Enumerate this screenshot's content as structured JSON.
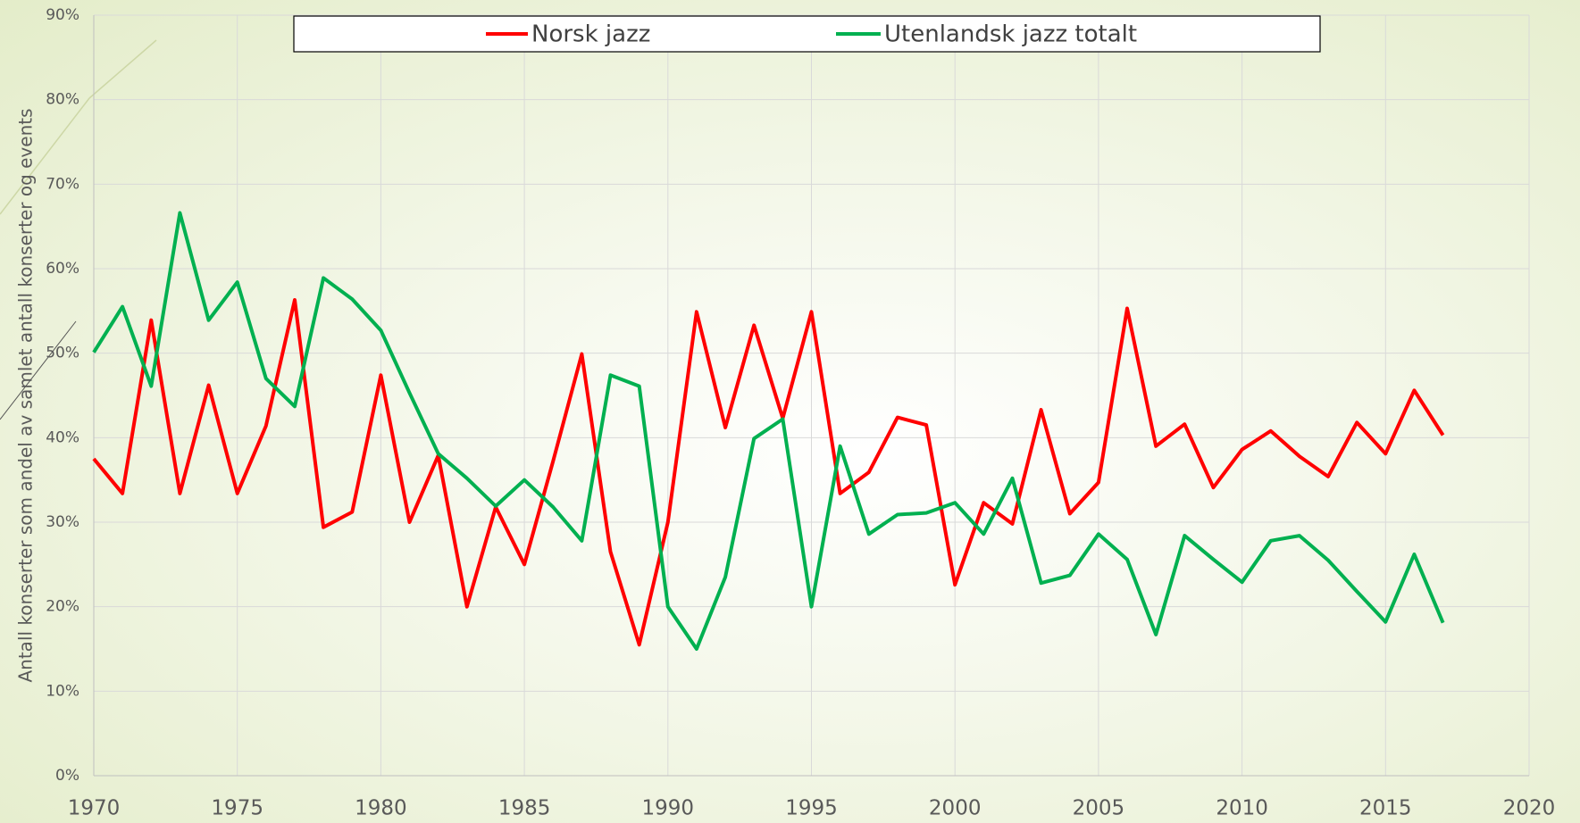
{
  "chart_data": {
    "type": "line",
    "y_label": "Antall konserter som andel av samlet antall konserter og events",
    "x": [
      1970,
      1971,
      1972,
      1973,
      1974,
      1975,
      1976,
      1977,
      1978,
      1979,
      1980,
      1981,
      1982,
      1983,
      1984,
      1985,
      1986,
      1987,
      1988,
      1989,
      1990,
      1991,
      1992,
      1993,
      1994,
      1995,
      1996,
      1997,
      1998,
      1999,
      2000,
      2001,
      2002,
      2003,
      2004,
      2005,
      2006,
      2007,
      2008,
      2009,
      2010,
      2011,
      2012,
      2013,
      2014,
      2015,
      2016,
      2017
    ],
    "series": [
      {
        "name": "Norsk jazz",
        "color": "#ff0000",
        "values": [
          37.5,
          33.4,
          53.9,
          33.4,
          46.2,
          33.4,
          41.4,
          56.3,
          29.4,
          31.2,
          47.4,
          30.0,
          37.9,
          20.0,
          31.8,
          25.0,
          37.2,
          49.9,
          26.5,
          15.5,
          30.0,
          54.9,
          41.2,
          53.3,
          42.3,
          54.9,
          33.4,
          35.9,
          42.4,
          41.5,
          22.6,
          32.3,
          29.8,
          43.3,
          31.0,
          34.7,
          55.3,
          39.0,
          41.6,
          34.1,
          38.6,
          40.8,
          37.8,
          35.4,
          41.8,
          38.1,
          45.6,
          40.3
        ]
      },
      {
        "name": "Utenlandsk jazz totalt",
        "color": "#00b050",
        "values": [
          50.1,
          55.5,
          46.1,
          66.6,
          53.9,
          58.4,
          47.0,
          43.7,
          58.9,
          56.4,
          52.7,
          45.3,
          38.1,
          35.2,
          31.9,
          35.0,
          31.8,
          27.8,
          47.4,
          46.1,
          20.0,
          15.0,
          23.5,
          39.9,
          42.2,
          20.0,
          39.0,
          28.6,
          30.9,
          31.1,
          32.3,
          28.6,
          35.2,
          22.8,
          23.7,
          28.6,
          25.6,
          16.7,
          28.4,
          25.6,
          22.9,
          27.8,
          28.4,
          25.5,
          21.8,
          18.2,
          26.2,
          18.1
        ]
      }
    ],
    "xlim": [
      1970,
      2020
    ],
    "xticks": [
      1970,
      1975,
      1980,
      1985,
      1990,
      1995,
      2000,
      2005,
      2010,
      2015,
      2020
    ],
    "ylim": [
      0,
      90
    ],
    "yticks": [
      {
        "value": 0,
        "label": "0%"
      },
      {
        "value": 10,
        "label": "10%"
      },
      {
        "value": 20,
        "label": "20%"
      },
      {
        "value": 30,
        "label": "30%"
      },
      {
        "value": 40,
        "label": "40%"
      },
      {
        "value": 50,
        "label": "50%"
      },
      {
        "value": 60,
        "label": "60%"
      },
      {
        "value": 70,
        "label": "70%"
      },
      {
        "value": 80,
        "label": "80%"
      },
      {
        "value": 90,
        "label": "90%"
      }
    ],
    "grid": true,
    "legend": "top"
  }
}
